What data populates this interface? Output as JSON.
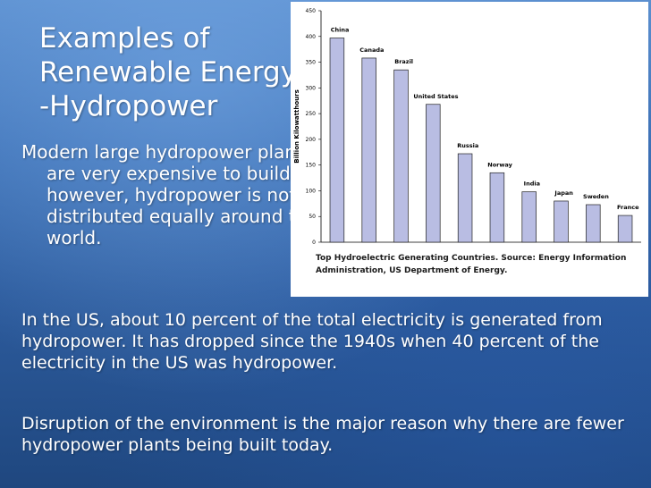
{
  "slide": {
    "title": "Examples of Renewable Energy--Hydropower",
    "bullet": "Modern large hydropower plants are very expensive to build; however, hydropower is not distributed equally around the world.",
    "para1": "In the US, about 10 percent of the total electricity is generated from hydropower. It has dropped since the 1940s when 40 percent of the electricity in the US was hydropower.",
    "para2": "Disruption of the environment is the major reason why there are fewer hydropower plants being built today."
  },
  "chart_data": {
    "type": "bar",
    "categories": [
      "China",
      "Canada",
      "Brazil",
      "United States",
      "Russia",
      "Norway",
      "India",
      "Japan",
      "Sweden",
      "France"
    ],
    "values": [
      397,
      358,
      335,
      268,
      172,
      135,
      98,
      80,
      73,
      52
    ],
    "ylabel": "Billion Kilowatthours",
    "ylim": [
      0,
      450
    ],
    "yticks": [
      0,
      50,
      100,
      150,
      200,
      250,
      300,
      350,
      400,
      450
    ],
    "grid": false,
    "bar_color": "#b9bde3",
    "source": "Top Hydroelectric Generating Countries. Source: Energy Information Administration, US Department of Energy."
  }
}
